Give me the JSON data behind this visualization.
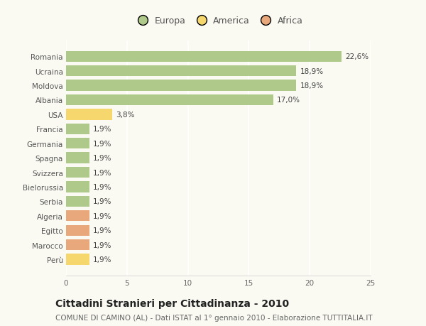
{
  "categories": [
    "Romania",
    "Ucraina",
    "Moldova",
    "Albania",
    "USA",
    "Francia",
    "Germania",
    "Spagna",
    "Svizzera",
    "Bielorussia",
    "Serbia",
    "Algeria",
    "Egitto",
    "Marocco",
    "Perù"
  ],
  "values": [
    22.6,
    18.9,
    18.9,
    17.0,
    3.8,
    1.9,
    1.9,
    1.9,
    1.9,
    1.9,
    1.9,
    1.9,
    1.9,
    1.9,
    1.9
  ],
  "labels": [
    "22,6%",
    "18,9%",
    "18,9%",
    "17,0%",
    "3,8%",
    "1,9%",
    "1,9%",
    "1,9%",
    "1,9%",
    "1,9%",
    "1,9%",
    "1,9%",
    "1,9%",
    "1,9%",
    "1,9%"
  ],
  "colors": [
    "#aec98a",
    "#aec98a",
    "#aec98a",
    "#aec98a",
    "#f5d76e",
    "#aec98a",
    "#aec98a",
    "#aec98a",
    "#aec98a",
    "#aec98a",
    "#aec98a",
    "#e8a87c",
    "#e8a87c",
    "#e8a87c",
    "#f5d76e"
  ],
  "legend_labels": [
    "Europa",
    "America",
    "Africa"
  ],
  "legend_colors": [
    "#aec98a",
    "#f5d76e",
    "#e8a87c"
  ],
  "title": "Cittadini Stranieri per Cittadinanza - 2010",
  "subtitle": "COMUNE DI CAMINO (AL) - Dati ISTAT al 1° gennaio 2010 - Elaborazione TUTTITALIA.IT",
  "xlim": [
    0,
    25
  ],
  "xticks": [
    0,
    5,
    10,
    15,
    20,
    25
  ],
  "background_color": "#fafaf2",
  "grid_color": "#ffffff",
  "bar_height": 0.75,
  "title_fontsize": 10,
  "subtitle_fontsize": 7.5,
  "label_fontsize": 7.5,
  "tick_fontsize": 7.5,
  "legend_fontsize": 9
}
